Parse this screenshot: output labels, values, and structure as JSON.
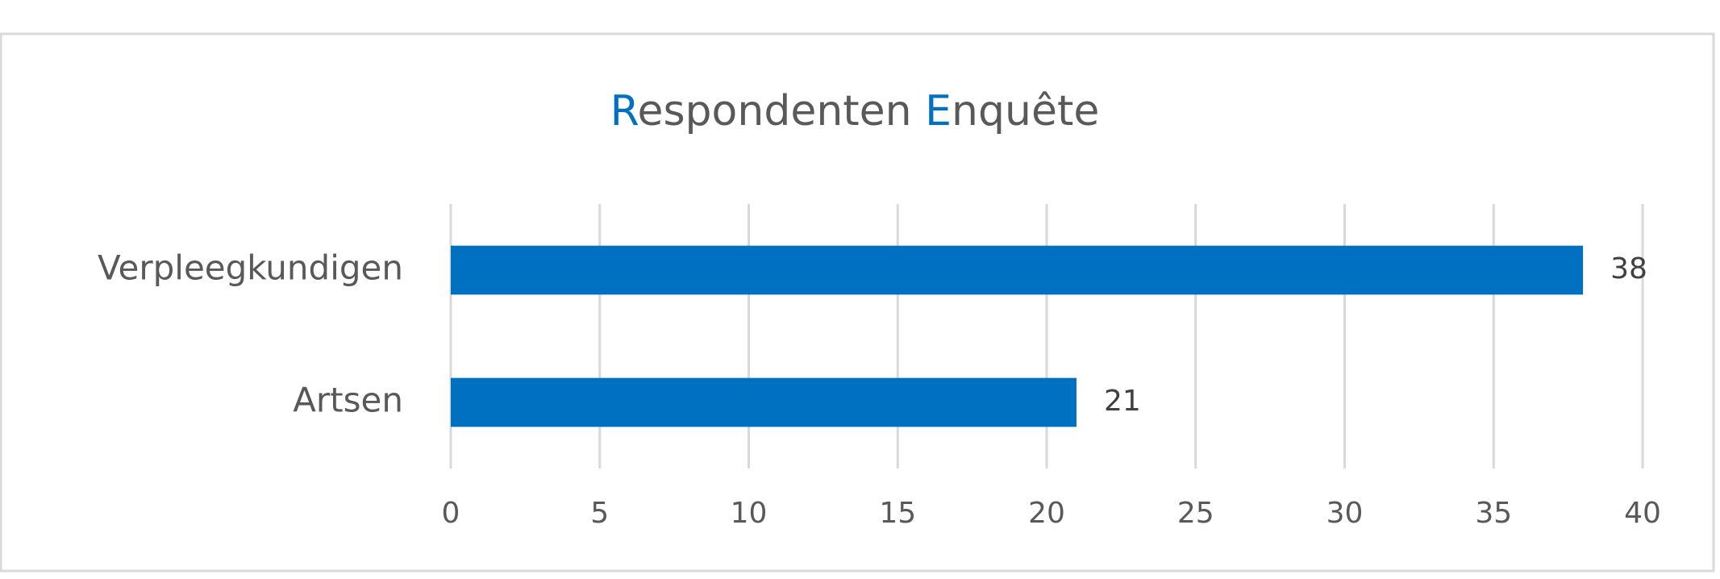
{
  "chart_data": {
    "type": "hbar",
    "title": "Respondenten Enquête",
    "title_highlight_color": "#0070c0",
    "categories": [
      "Verpleegkundigen",
      "Artsen"
    ],
    "values": [
      38,
      21
    ],
    "color": "#0070c0",
    "xlim": [
      0,
      40
    ],
    "xticks": [
      0,
      5,
      10,
      15,
      20,
      25,
      30,
      35,
      40
    ],
    "grid": true,
    "data_labels": true
  }
}
